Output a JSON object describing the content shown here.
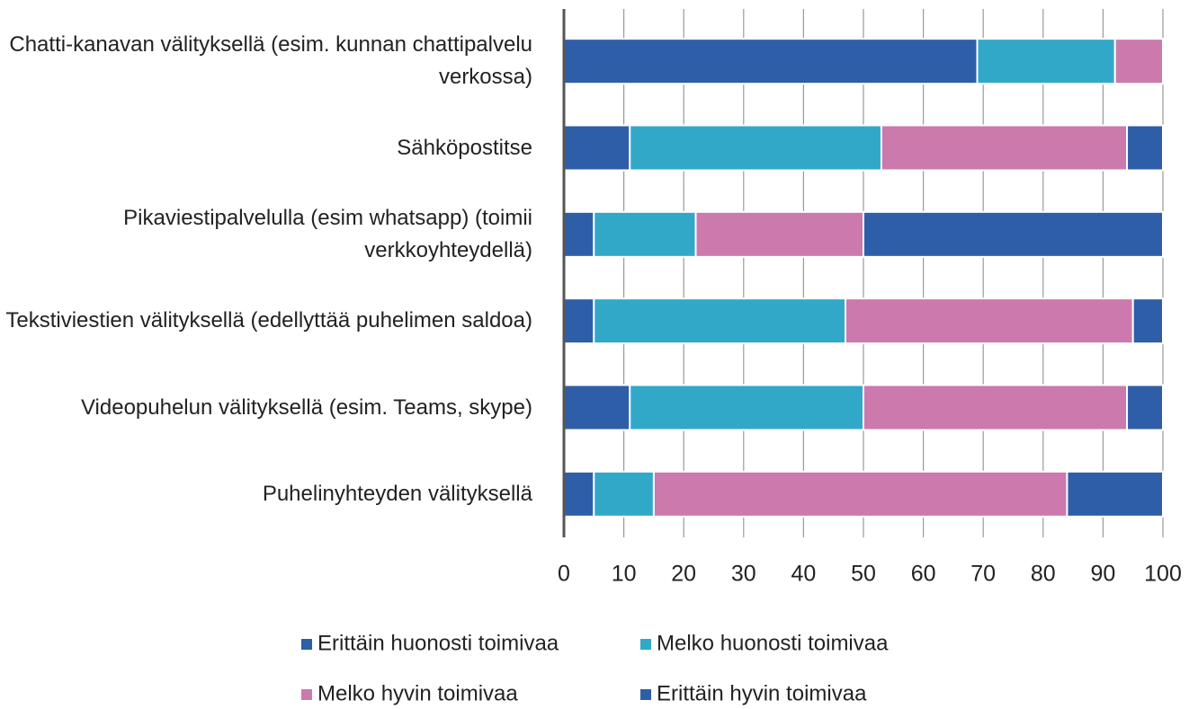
{
  "chart_data": {
    "type": "stacked-barh",
    "categories": [
      "Chatti-kanavan välityksellä (esim. kunnan chattipalvelu verkossa)",
      "Sähköpostitse",
      "Pikaviestipalvelulla (esim whatsapp) (toimii verkkoyhteydellä)",
      "Tekstiviestien välityksellä (edellyttää puhelimen saldoa)",
      "Videopuhelun välityksellä (esim. Teams, skype)",
      "Puhelinyhteyden välityksellä"
    ],
    "series": [
      {
        "name": "Erittäin huonosti toimivaa",
        "color": "#2f5ea8",
        "values": [
          69,
          11,
          5,
          5,
          11,
          5
        ]
      },
      {
        "name": "Melko huonosti toimivaa",
        "color": "#32a8c8",
        "values": [
          23,
          42,
          17,
          42,
          39,
          10
        ]
      },
      {
        "name": "Melko hyvin toimivaa",
        "color": "#cc79ad",
        "values": [
          8,
          41,
          28,
          48,
          44,
          69
        ]
      },
      {
        "name": "Erittäin hyvin toimivaa",
        "color": "#2f5ea8",
        "values": [
          0,
          6,
          50,
          5,
          6,
          16
        ]
      }
    ],
    "xlim": [
      0,
      100
    ],
    "xticks": [
      0,
      10,
      20,
      30,
      40,
      50,
      60,
      70,
      80,
      90,
      100
    ],
    "grid": true
  }
}
